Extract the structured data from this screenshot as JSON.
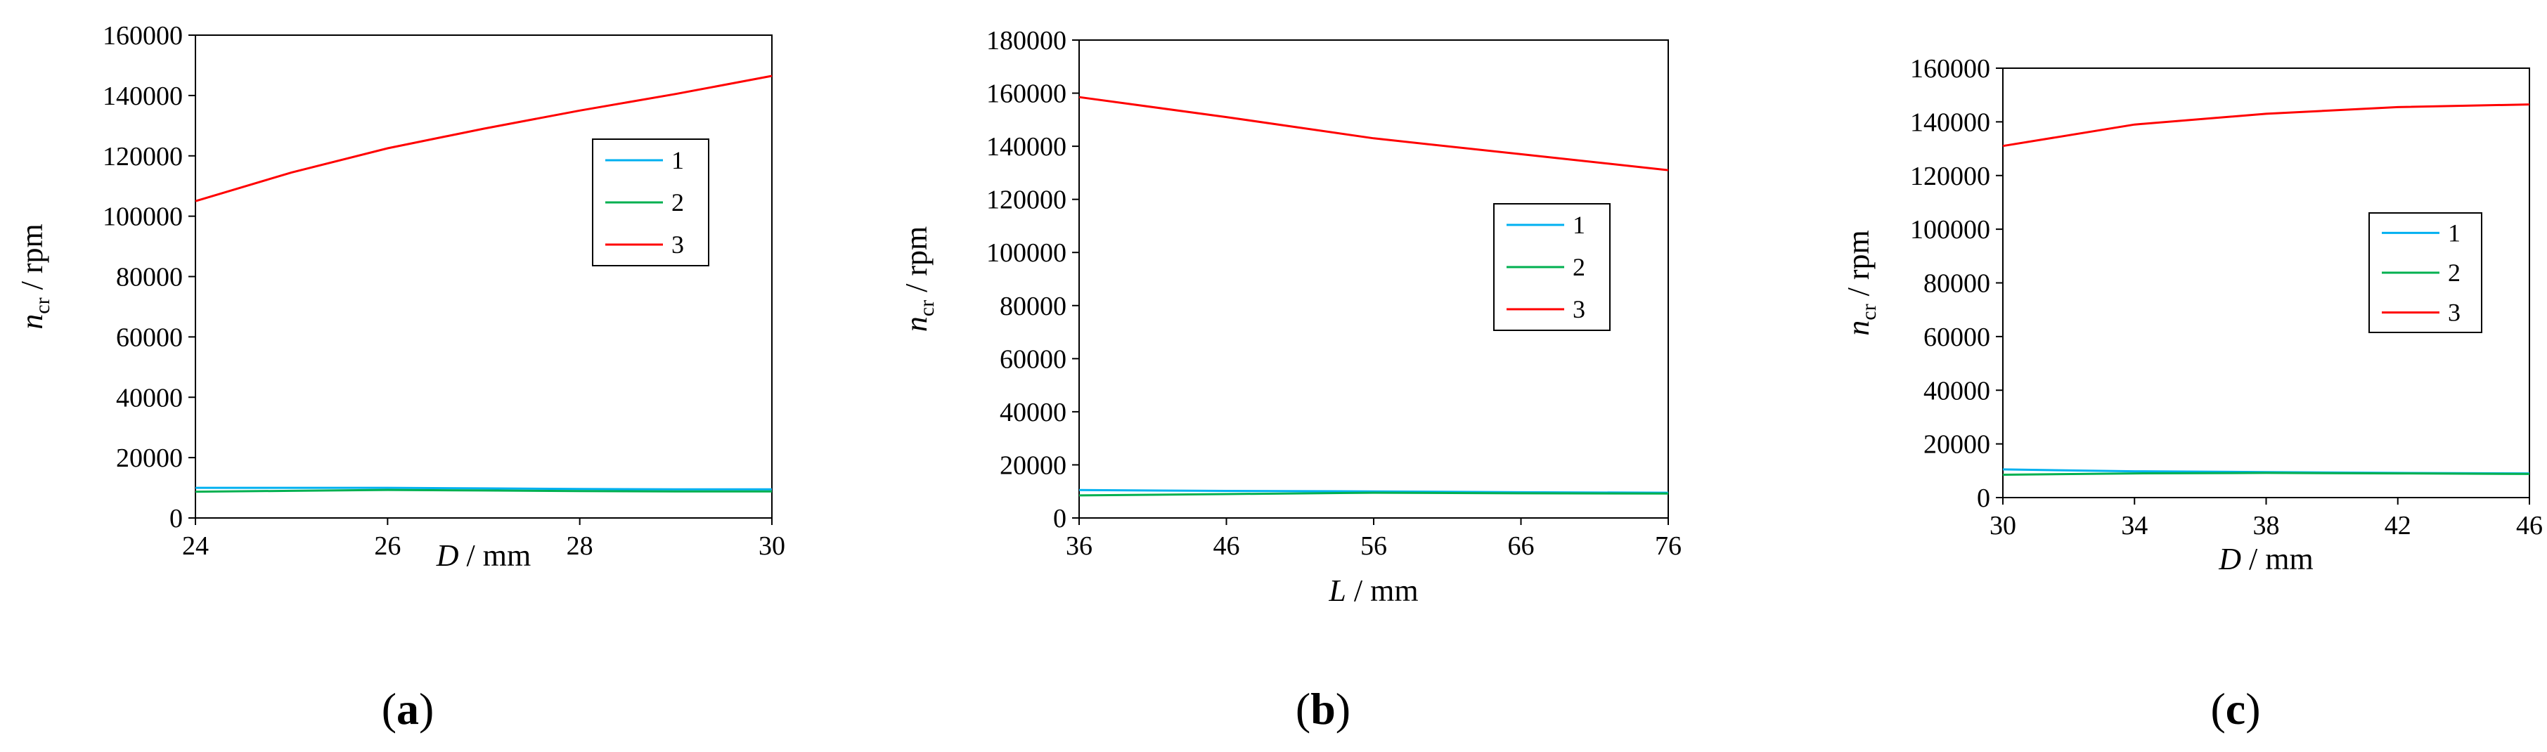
{
  "panels": [
    {
      "label_open": "(",
      "label_letter": "a",
      "label_close": ")",
      "xlabel_var": "D",
      "xlabel_unit": " / mm",
      "ylabel_var": "n",
      "ylabel_sub": "cr",
      "ylabel_unit": " / rpm"
    },
    {
      "label_open": "(",
      "label_letter": "b",
      "label_close": ")",
      "xlabel_var": "L",
      "xlabel_unit": " / mm",
      "ylabel_var": "n",
      "ylabel_sub": "cr",
      "ylabel_unit": " / rpm"
    },
    {
      "label_open": "(",
      "label_letter": "c",
      "label_close": ")",
      "xlabel_var": "D",
      "xlabel_unit": " / mm",
      "ylabel_var": "n",
      "ylabel_sub": "cr",
      "ylabel_unit": " / rpm"
    }
  ],
  "chart_data": [
    {
      "type": "line",
      "xlabel": "D / mm",
      "ylabel": "ncr / rpm",
      "xlim": [
        24,
        30
      ],
      "ylim": [
        0,
        160000
      ],
      "xticks": [
        "24",
        "26",
        "28",
        "30"
      ],
      "yticks": [
        "0",
        "20000",
        "40000",
        "60000",
        "80000",
        "100000",
        "120000",
        "140000",
        "160000"
      ],
      "grid": false,
      "legend": "right",
      "series": [
        {
          "name": "1",
          "color": "#00b0f0",
          "x": [
            24,
            25,
            26,
            27,
            28,
            29,
            30
          ],
          "y": [
            10000,
            10000,
            10000,
            9800,
            9600,
            9500,
            9500
          ]
        },
        {
          "name": "2",
          "color": "#00b050",
          "x": [
            24,
            25,
            26,
            27,
            28,
            29,
            30
          ],
          "y": [
            8700,
            9000,
            9300,
            9100,
            8900,
            8800,
            8800
          ]
        },
        {
          "name": "3",
          "color": "#ff0000",
          "x": [
            24,
            25,
            26,
            27,
            28,
            29,
            30
          ],
          "y": [
            105000,
            114500,
            122500,
            129000,
            135000,
            140500,
            146500
          ]
        }
      ]
    },
    {
      "type": "line",
      "xlabel": "L / mm",
      "ylabel": "ncr / rpm",
      "xlim": [
        36,
        76
      ],
      "ylim": [
        0,
        180000
      ],
      "xticks": [
        "36",
        "46",
        "56",
        "66",
        "76"
      ],
      "yticks": [
        "0",
        "20000",
        "40000",
        "60000",
        "80000",
        "100000",
        "120000",
        "140000",
        "160000",
        "180000"
      ],
      "grid": false,
      "legend": "right",
      "series": [
        {
          "name": "1",
          "color": "#00b0f0",
          "x": [
            36,
            46,
            56,
            66,
            76
          ],
          "y": [
            10500,
            10200,
            10000,
            9700,
            9500
          ]
        },
        {
          "name": "2",
          "color": "#00b050",
          "x": [
            36,
            46,
            56,
            66,
            76
          ],
          "y": [
            8500,
            9000,
            9500,
            9300,
            9200
          ]
        },
        {
          "name": "3",
          "color": "#ff0000",
          "x": [
            36,
            46,
            56,
            66,
            76
          ],
          "y": [
            158500,
            151000,
            143000,
            137000,
            131000
          ]
        }
      ]
    },
    {
      "type": "line",
      "xlabel": "D / mm",
      "ylabel": "ncr / rpm",
      "xlim": [
        30,
        46
      ],
      "ylim": [
        0,
        160000
      ],
      "xticks": [
        "30",
        "34",
        "38",
        "42",
        "46"
      ],
      "yticks": [
        "0",
        "20000",
        "40000",
        "60000",
        "80000",
        "100000",
        "120000",
        "140000",
        "160000"
      ],
      "grid": false,
      "legend": "right",
      "series": [
        {
          "name": "1",
          "color": "#00b0f0",
          "x": [
            30,
            34,
            38,
            42,
            46
          ],
          "y": [
            10500,
            9800,
            9500,
            9200,
            9000
          ]
        },
        {
          "name": "2",
          "color": "#00b050",
          "x": [
            30,
            34,
            38,
            42,
            46
          ],
          "y": [
            8500,
            9000,
            9200,
            9000,
            8800
          ]
        },
        {
          "name": "3",
          "color": "#ff0000",
          "x": [
            30,
            34,
            38,
            42,
            46
          ],
          "y": [
            131000,
            139000,
            143000,
            145500,
            146500
          ]
        }
      ]
    }
  ]
}
